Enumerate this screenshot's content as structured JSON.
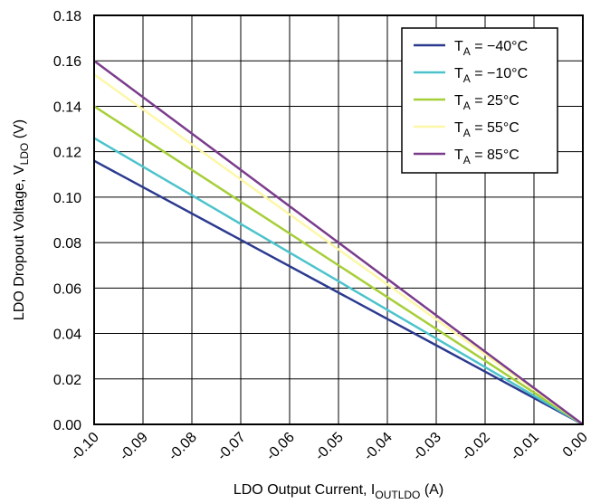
{
  "chart_data": {
    "type": "line",
    "xlabel": "LDO Output Current, I",
    "xlabel_sub": "OUTLDO",
    "xlabel_unit": " (A)",
    "ylabel": "LDO Dropout Voltage, V",
    "ylabel_sub": "LDO",
    "ylabel_unit": " (V)",
    "xlim": [
      -0.1,
      0.0
    ],
    "ylim": [
      0.0,
      0.18
    ],
    "x_ticks": [
      "-0.10",
      "-0.09",
      "-0.08",
      "-0.07",
      "-0.06",
      "-0.05",
      "-0.04",
      "-0.03",
      "-0.02",
      "-0.01",
      "0.00"
    ],
    "x_tick_values": [
      -0.1,
      -0.09,
      -0.08,
      -0.07,
      -0.06,
      -0.05,
      -0.04,
      -0.03,
      -0.02,
      -0.01,
      0.0
    ],
    "y_ticks": [
      "0.00",
      "0.02",
      "0.04",
      "0.06",
      "0.08",
      "0.10",
      "0.12",
      "0.14",
      "0.16",
      "0.18"
    ],
    "y_tick_values": [
      0.0,
      0.02,
      0.04,
      0.06,
      0.08,
      0.1,
      0.12,
      0.14,
      0.16,
      0.18
    ],
    "grid": true,
    "legend_position": "top-right",
    "series": [
      {
        "name": "T",
        "name_sub": "A",
        "name_rest": " = −40°C",
        "color": "#2b3a8f",
        "x": [
          -0.1,
          0.0
        ],
        "y": [
          0.116,
          0.0
        ]
      },
      {
        "name": "T",
        "name_sub": "A",
        "name_rest": " = −10°C",
        "color": "#4cc3cc",
        "x": [
          -0.1,
          0.0
        ],
        "y": [
          0.126,
          0.0
        ]
      },
      {
        "name": "T",
        "name_sub": "A",
        "name_rest": " = 25°C",
        "color": "#a6cf38",
        "x": [
          -0.1,
          0.0
        ],
        "y": [
          0.14,
          0.0
        ]
      },
      {
        "name": "T",
        "name_sub": "A",
        "name_rest": " = 55°C",
        "color": "#fdf7a8",
        "x": [
          -0.1,
          0.0
        ],
        "y": [
          0.154,
          0.0
        ]
      },
      {
        "name": "T",
        "name_sub": "A",
        "name_rest": " = 85°C",
        "color": "#7b3c8c",
        "x": [
          -0.1,
          0.0
        ],
        "y": [
          0.16,
          0.0
        ]
      }
    ]
  }
}
